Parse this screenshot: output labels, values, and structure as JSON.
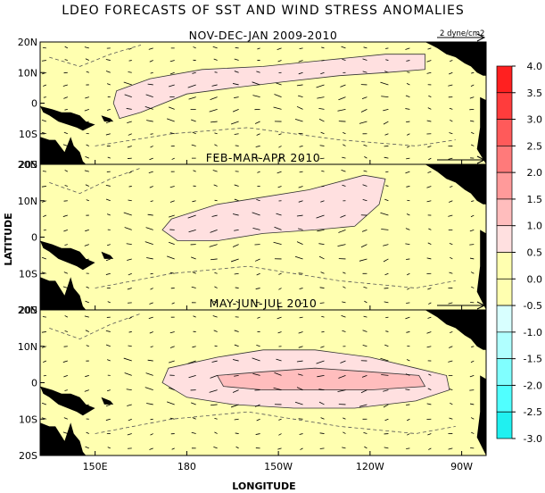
{
  "chart_data": {
    "type": "heatmap",
    "title": "LDEO FORECASTS OF SST AND WIND STRESS ANOMALIES",
    "xlabel": "LONGITUDE",
    "ylabel": "LATITUDE",
    "x_ticks": [
      "150E",
      "180",
      "150W",
      "120W",
      "90W"
    ],
    "y_ticks": [
      "20N",
      "10N",
      "0",
      "10S",
      "20S"
    ],
    "reference_vector_label": "2 dyne/cm2",
    "panels": [
      {
        "title": "NOV-DEC-JAN 2009-2010",
        "max_anomaly_contour": 0.5
      },
      {
        "title": "FEB-MAR-APR 2010",
        "max_anomaly_contour": 0.5
      },
      {
        "title": "MAY-JUN-JUL 2010",
        "max_anomaly_contour": 1.0
      }
    ],
    "colorbar": {
      "labels": [
        "4.0",
        "3.5",
        "3.0",
        "2.5",
        "2.0",
        "1.5",
        "1.0",
        "0.5",
        "0.0",
        "-0.5",
        "-1.0",
        "-1.5",
        "-2.0",
        "-2.5",
        "-3.0"
      ],
      "colors": [
        "#ff2020",
        "#ff3c3c",
        "#ff5a5a",
        "#ff7a7a",
        "#ff9a9a",
        "#ffbdbd",
        "#ffe0e0",
        "#ffffb0",
        "#ffffb0",
        "#d8ffff",
        "#b0ffff",
        "#80ffff",
        "#50ffff",
        "#20f0f0"
      ]
    },
    "colors": {
      "zero_band": "#ffffb0",
      "weak_warm": "#ffe0e0",
      "moderate_warm": "#ffbdbd",
      "land": "#000000"
    }
  }
}
